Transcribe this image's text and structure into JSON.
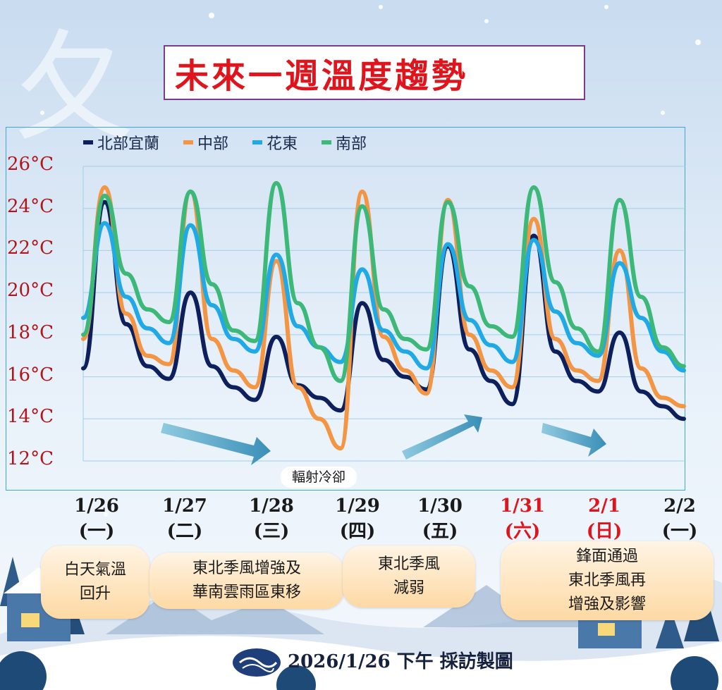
{
  "title": "未來一週溫度趨勢",
  "legend": [
    {
      "name": "北部宜蘭",
      "color": "#0d1f5c"
    },
    {
      "name": "中部",
      "color": "#f39542"
    },
    {
      "name": "花東",
      "color": "#1fa9e6"
    },
    {
      "name": "南部",
      "color": "#3cb878"
    }
  ],
  "y_ticks": [
    "26°C",
    "24°C",
    "22°C",
    "20°C",
    "18°C",
    "16°C",
    "14°C",
    "12°C"
  ],
  "dates": [
    {
      "date": "1/26",
      "weekday": "(一)",
      "holiday": false
    },
    {
      "date": "1/27",
      "weekday": "(二)",
      "holiday": false
    },
    {
      "date": "1/28",
      "weekday": "(三)",
      "holiday": false
    },
    {
      "date": "1/29",
      "weekday": "(四)",
      "holiday": false
    },
    {
      "date": "1/30",
      "weekday": "(五)",
      "holiday": false
    },
    {
      "date": "1/31",
      "weekday": "(六)",
      "holiday": true
    },
    {
      "date": "2/1",
      "weekday": "(日)",
      "holiday": true
    },
    {
      "date": "2/2",
      "weekday": "(一)",
      "holiday": false
    }
  ],
  "annotation": "輻射冷卻",
  "notes": [
    "白天氣溫\n回升",
    "東北季風增強及\n華南雲雨區東移",
    "東北季風\n減弱",
    "鋒面通過\n東北季風再\n增強及影響"
  ],
  "footer": "2026/1/26 下午 採訪製圖",
  "chart_data": {
    "type": "line",
    "ylim": [
      12,
      26
    ],
    "x": [
      "1/26",
      "1/26 06",
      "1/26 12",
      "1/26 18",
      "1/27",
      "1/27 06",
      "1/27 12",
      "1/27 18",
      "1/28",
      "1/28 06",
      "1/28 12",
      "1/28 18",
      "1/29",
      "1/29 06",
      "1/29 12",
      "1/29 18",
      "1/30",
      "1/30 06",
      "1/30 12",
      "1/30 18",
      "1/31",
      "1/31 06",
      "1/31 12",
      "1/31 18",
      "2/1",
      "2/1 06",
      "2/1 12",
      "2/1 18",
      "2/2"
    ],
    "series": [
      {
        "name": "北部宜蘭",
        "color": "#0d1f5c",
        "values": [
          16.4,
          24.3,
          18.5,
          16.5,
          15.9,
          20.0,
          16.5,
          15.5,
          14.9,
          17.9,
          15.6,
          15.0,
          14.4,
          19.5,
          16.8,
          16.0,
          15.4,
          22.2,
          17.3,
          15.8,
          14.7,
          22.7,
          17.2,
          15.8,
          15.3,
          18.1,
          15.3,
          14.6,
          14.0
        ]
      },
      {
        "name": "中部",
        "color": "#f39542",
        "values": [
          17.8,
          25.0,
          19.0,
          17.0,
          16.6,
          24.8,
          17.8,
          16.3,
          15.5,
          21.5,
          15.5,
          14.0,
          12.6,
          24.8,
          17.9,
          16.3,
          15.2,
          24.4,
          18.0,
          16.3,
          15.5,
          23.5,
          17.8,
          16.3,
          15.8,
          22.0,
          16.4,
          15.0,
          14.6
        ]
      },
      {
        "name": "花東",
        "color": "#1fa9e6",
        "values": [
          18.8,
          23.3,
          19.8,
          18.3,
          17.6,
          23.2,
          19.4,
          17.8,
          17.2,
          21.8,
          18.4,
          17.4,
          16.7,
          21.1,
          18.2,
          17.2,
          16.4,
          22.3,
          18.7,
          17.5,
          16.7,
          22.5,
          19.1,
          17.6,
          17.0,
          21.4,
          18.8,
          17.2,
          16.3
        ]
      },
      {
        "name": "南部",
        "color": "#3cb878",
        "values": [
          18.0,
          24.6,
          20.9,
          19.2,
          18.6,
          24.8,
          20.4,
          18.2,
          17.7,
          25.2,
          19.5,
          17.4,
          15.8,
          24.1,
          19.2,
          17.8,
          17.3,
          24.3,
          20.3,
          18.4,
          17.9,
          25.0,
          20.5,
          18.3,
          17.2,
          24.4,
          19.8,
          17.4,
          16.5
        ]
      }
    ]
  }
}
